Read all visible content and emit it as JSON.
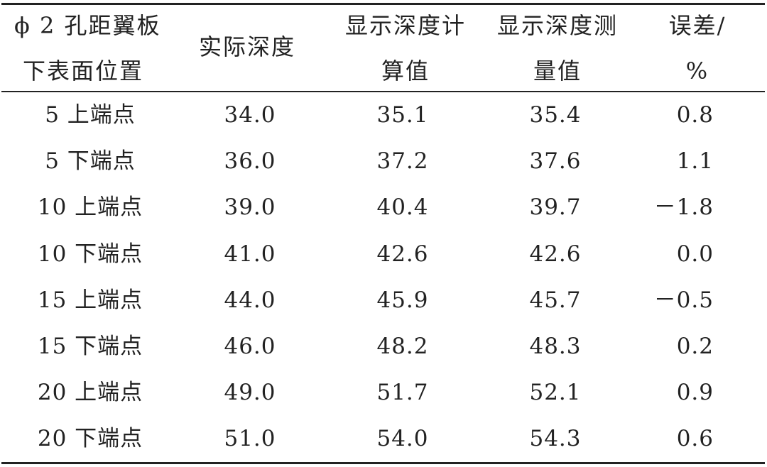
{
  "table": {
    "header": {
      "col0": [
        "ϕ 2 孔距翼板",
        "下表面位置"
      ],
      "col1": "实际深度",
      "col2": [
        "显示深度计",
        "算值"
      ],
      "col3": [
        "显示深度测",
        "量值"
      ],
      "col4": [
        "误差/",
        "%"
      ]
    },
    "rows": [
      [
        "5 上端点",
        "34.0",
        "35.1",
        "35.4",
        "0.8"
      ],
      [
        "5 下端点",
        "36.0",
        "37.2",
        "37.6",
        "1.1"
      ],
      [
        "10 上端点",
        "39.0",
        "40.4",
        "39.7",
        "－1.8"
      ],
      [
        "10 下端点",
        "41.0",
        "42.6",
        "42.6",
        "0.0"
      ],
      [
        "15 上端点",
        "44.0",
        "45.9",
        "45.7",
        "－0.5"
      ],
      [
        "15 下端点",
        "46.0",
        "48.2",
        "48.3",
        "0.2"
      ],
      [
        "20 上端点",
        "49.0",
        "51.7",
        "52.1",
        "0.9"
      ],
      [
        "20 下端点",
        "51.0",
        "54.0",
        "54.3",
        "0.6"
      ]
    ]
  }
}
